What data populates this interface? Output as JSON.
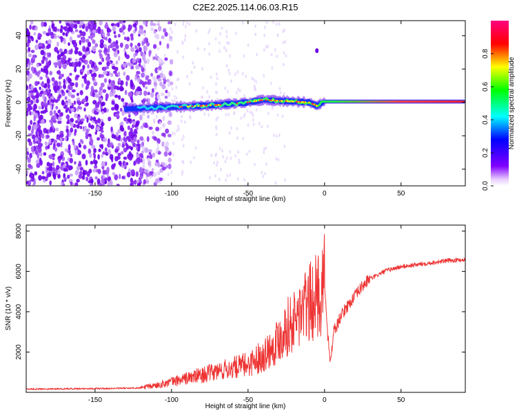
{
  "figure": {
    "title": "C2E2.2025.114.06.03.R15"
  },
  "chart_data": [
    {
      "id": "spectrogram",
      "type": "heatmap",
      "title": "C2E2.2025.114.06.03.R15",
      "xlabel": "Height of straight line (km)",
      "ylabel": "Frequency (Hz)",
      "xlim": [
        -195,
        92
      ],
      "ylim": [
        -50,
        49
      ],
      "xticks": [
        -150,
        -100,
        -50,
        0,
        50
      ],
      "yticks": [
        -40,
        -20,
        0,
        20,
        40
      ],
      "colorbar": {
        "label": "Normalized spectral amplitude",
        "range": [
          0,
          1
        ],
        "ticks": [
          0.0,
          0.2,
          0.4,
          0.6,
          0.8
        ],
        "tick_labels": [
          "0.0",
          "0.2",
          "0.4",
          "0.6",
          "0.8"
        ],
        "colormap": [
          "#ffffff",
          "#8000ff",
          "#0000ff",
          "#00ffff",
          "#00ff00",
          "#ffff00",
          "#ff0000",
          "#ff0080"
        ]
      },
      "ridge": [
        {
          "x": -130,
          "y": -4
        },
        {
          "x": -110,
          "y": -3
        },
        {
          "x": -90,
          "y": -2.5
        },
        {
          "x": -70,
          "y": -1.5
        },
        {
          "x": -50,
          "y": 0
        },
        {
          "x": -40,
          "y": 1.5
        },
        {
          "x": -30,
          "y": 1
        },
        {
          "x": -20,
          "y": 0.5
        },
        {
          "x": -10,
          "y": 0
        },
        {
          "x": -5,
          "y": -2
        },
        {
          "x": 0,
          "y": 0.5
        },
        {
          "x": 30,
          "y": 0.5
        },
        {
          "x": 60,
          "y": 0.5
        },
        {
          "x": 92,
          "y": 0.5
        }
      ],
      "spot": {
        "x": -5,
        "y": 31
      }
    },
    {
      "id": "snr",
      "type": "line",
      "xlabel": "Height of straight line (km)",
      "ylabel": "SNR (10 * v/v)",
      "xlim": [
        -195,
        92
      ],
      "ylim": [
        0,
        8300
      ],
      "xticks": [
        -150,
        -100,
        -50,
        0,
        50
      ],
      "yticks": [
        2000,
        4000,
        6000,
        8000
      ],
      "color": "#ee3333",
      "series": [
        {
          "name": "SNR",
          "x": [
            -195,
            -180,
            -160,
            -140,
            -120,
            -110,
            -100,
            -90,
            -80,
            -70,
            -60,
            -50,
            -40,
            -35,
            -30,
            -25,
            -20,
            -15,
            -10,
            -5,
            -2,
            0,
            2,
            4,
            6,
            8,
            10,
            15,
            20,
            25,
            30,
            35,
            40,
            50,
            60,
            70,
            80,
            92
          ],
          "values": [
            150,
            160,
            170,
            180,
            200,
            300,
            450,
            600,
            750,
            900,
            1050,
            1200,
            1600,
            1900,
            2300,
            2800,
            3000,
            3500,
            3800,
            4100,
            4400,
            5200,
            2800,
            1400,
            3000,
            3200,
            3600,
            4200,
            4700,
            5200,
            5600,
            5800,
            6000,
            6200,
            6300,
            6400,
            6500,
            6550
          ]
        }
      ]
    }
  ]
}
